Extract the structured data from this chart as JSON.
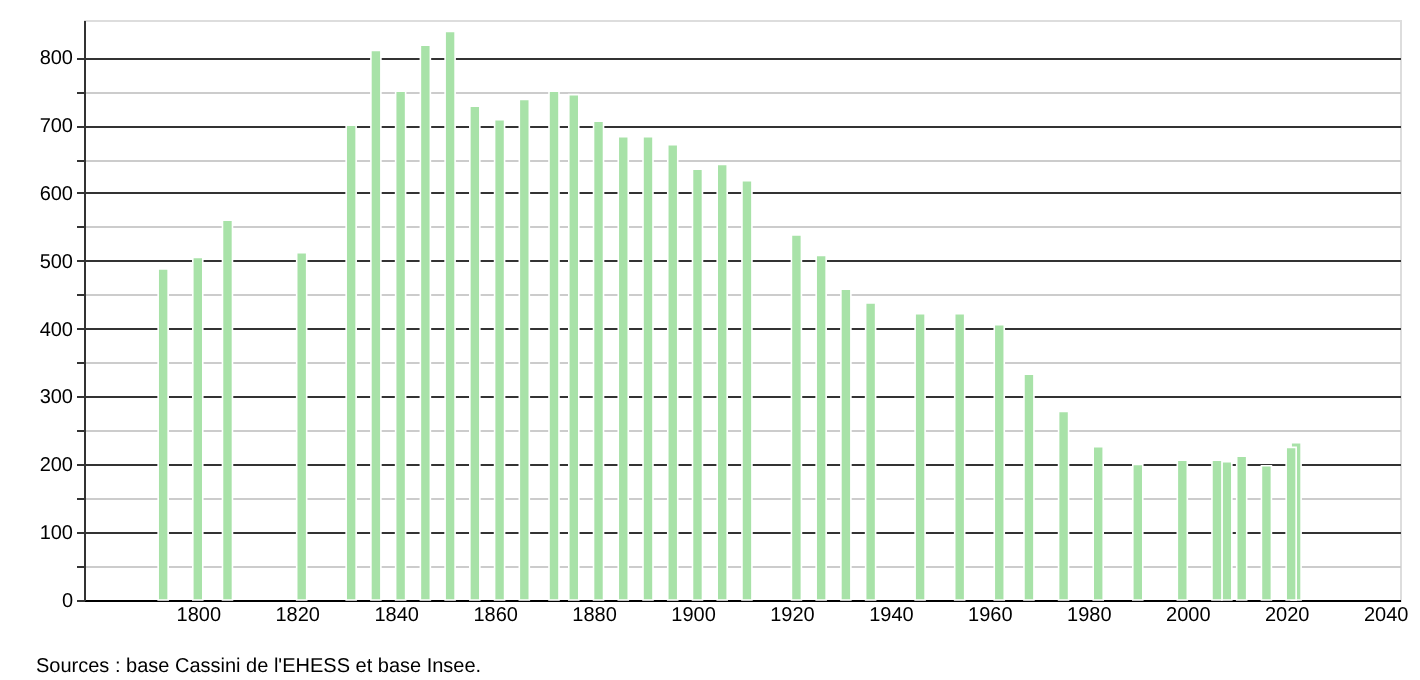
{
  "chart_data": {
    "type": "bar",
    "color": "#a8e2a8",
    "x": [
      1793,
      1800,
      1806,
      1821,
      1831,
      1836,
      1841,
      1846,
      1851,
      1856,
      1861,
      1866,
      1872,
      1876,
      1881,
      1886,
      1891,
      1896,
      1901,
      1906,
      1911,
      1921,
      1926,
      1931,
      1936,
      1946,
      1954,
      1962,
      1968,
      1975,
      1982,
      1990,
      1999,
      2006,
      2008,
      2011,
      2016,
      2021,
      2022
    ],
    "values": [
      488,
      505,
      560,
      512,
      700,
      810,
      750,
      818,
      838,
      728,
      708,
      738,
      750,
      745,
      706,
      683,
      683,
      671,
      635,
      642,
      618,
      538,
      508,
      458,
      438,
      422,
      422,
      406,
      333,
      278,
      226,
      200,
      206,
      206,
      204,
      212,
      198,
      225,
      232
    ],
    "xlim": [
      1777,
      2043
    ],
    "xticks": [
      1800,
      1820,
      1840,
      1860,
      1880,
      1900,
      1920,
      1940,
      1960,
      1980,
      2000,
      2020,
      2040
    ],
    "ylim": [
      0,
      855
    ],
    "yticks": [
      0,
      {
        "value": 50,
        "label": null
      },
      100,
      {
        "value": 150,
        "label": null
      },
      200,
      {
        "value": 250,
        "label": null
      },
      300,
      {
        "value": 350,
        "label": null
      },
      400,
      {
        "value": 450,
        "label": null
      },
      500,
      {
        "value": 550,
        "label": null
      },
      600,
      {
        "value": 650,
        "label": null
      },
      700,
      {
        "value": 750,
        "label": null
      },
      800
    ],
    "grid": "y",
    "annotations": [
      "Sources : base Cassini de l'EHESS et base Insee."
    ]
  }
}
